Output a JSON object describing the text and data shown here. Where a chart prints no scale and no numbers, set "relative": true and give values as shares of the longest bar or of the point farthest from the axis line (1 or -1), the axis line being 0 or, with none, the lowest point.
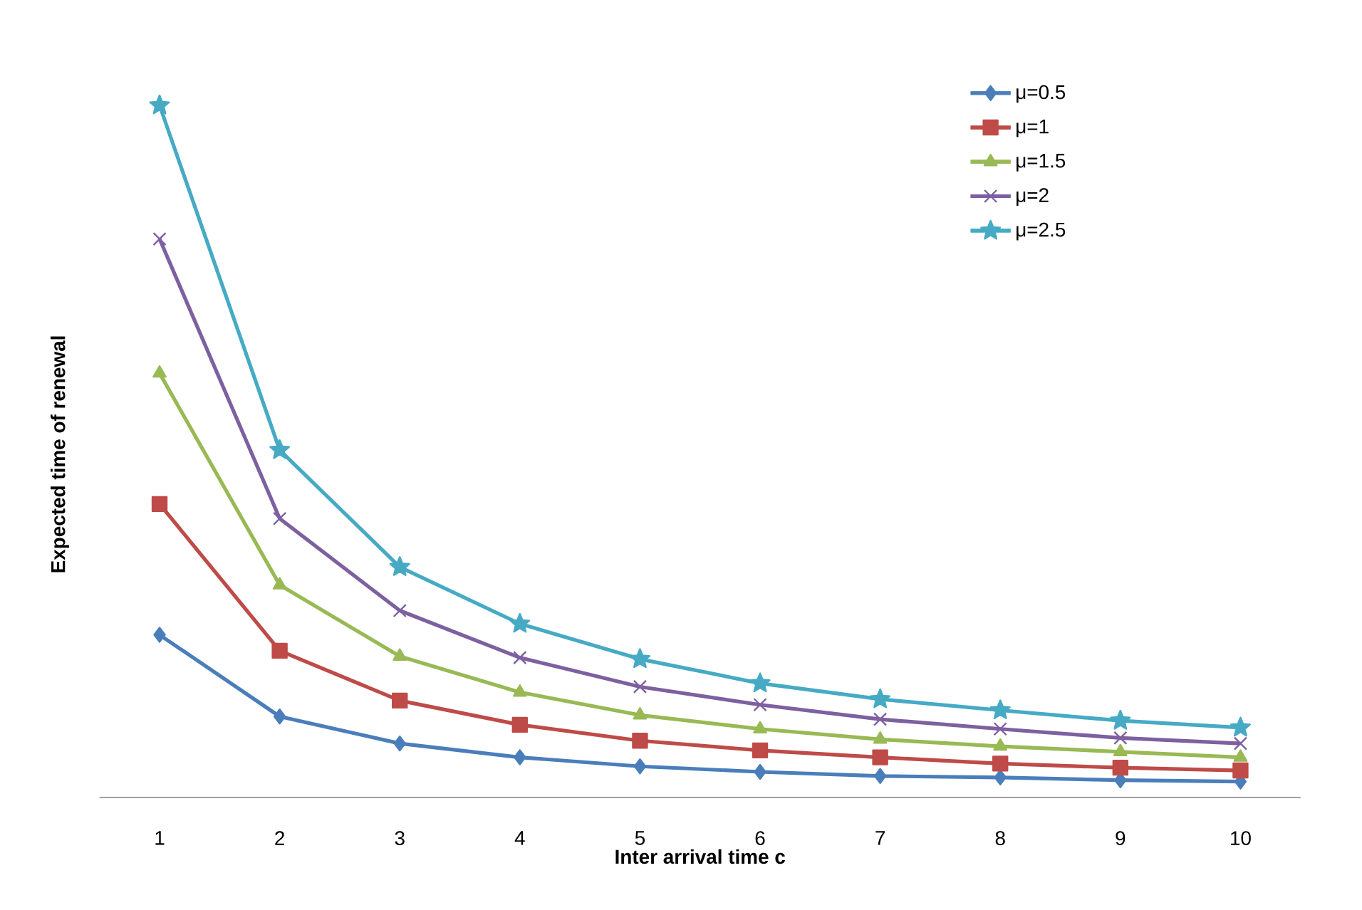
{
  "chart_data": {
    "type": "line",
    "relative": true,
    "xlabel": "Inter arrival time c",
    "ylabel": "Expected time of renewal",
    "legend": "top right",
    "categories": [
      "1",
      "2",
      "3",
      "4",
      "5",
      "6",
      "7",
      "8",
      "9",
      "10"
    ],
    "series": [
      {
        "name": "μ=0.5",
        "color": "#4a7ebb",
        "marker": "diamond",
        "values": [
          0.235,
          0.117,
          0.078,
          0.058,
          0.045,
          0.037,
          0.031,
          0.029,
          0.025,
          0.023
        ]
      },
      {
        "name": "μ=1",
        "color": "#be4b48",
        "marker": "square",
        "values": [
          0.424,
          0.212,
          0.14,
          0.105,
          0.082,
          0.068,
          0.058,
          0.049,
          0.043,
          0.039
        ]
      },
      {
        "name": "μ=1.5",
        "color": "#98b954",
        "marker": "triangle",
        "values": [
          0.613,
          0.307,
          0.204,
          0.152,
          0.119,
          0.099,
          0.084,
          0.074,
          0.066,
          0.058
        ]
      },
      {
        "name": "μ=2",
        "color": "#7d60a0",
        "marker": "cross",
        "values": [
          0.807,
          0.403,
          0.27,
          0.202,
          0.16,
          0.134,
          0.113,
          0.099,
          0.086,
          0.078
        ]
      },
      {
        "name": "μ=2.5",
        "color": "#46aac5",
        "marker": "star",
        "values": [
          1,
          0.502,
          0.333,
          0.251,
          0.2,
          0.165,
          0.142,
          0.126,
          0.111,
          0.101
        ]
      }
    ]
  }
}
